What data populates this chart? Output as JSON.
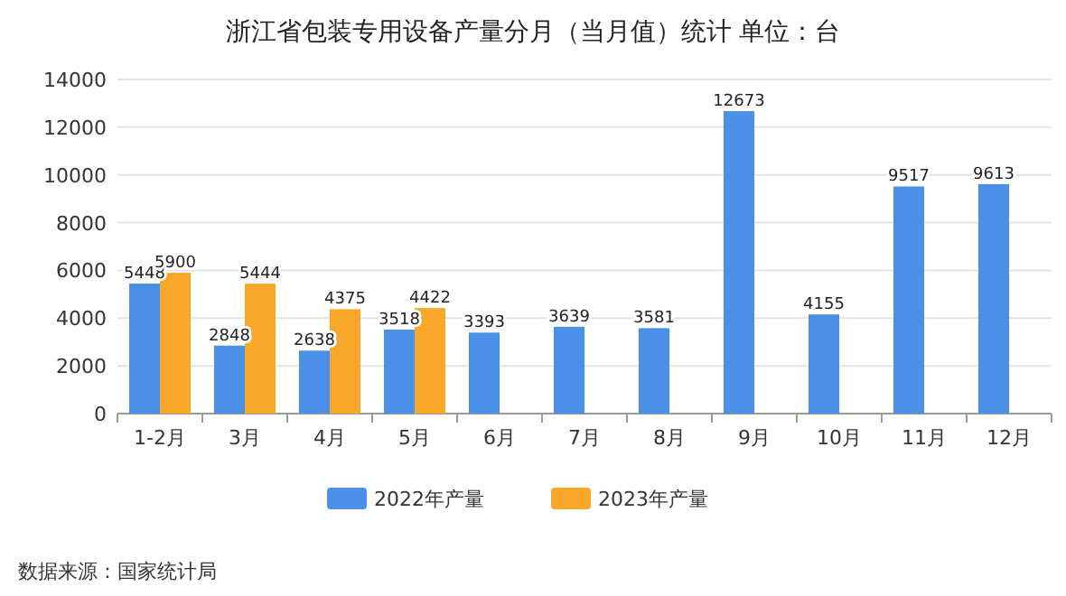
{
  "chart_data": {
    "type": "bar",
    "title": "浙江省包装专用设备产量分月（当月值）统计  单位：台",
    "categories": [
      "1-2月",
      "3月",
      "4月",
      "5月",
      "6月",
      "7月",
      "8月",
      "9月",
      "10月",
      "11月",
      "12月"
    ],
    "series": [
      {
        "name": "2022年产量",
        "color": "#4a8fe8",
        "values": [
          5448,
          2848,
          2638,
          3518,
          3393,
          3639,
          3581,
          12673,
          4155,
          9517,
          9613
        ]
      },
      {
        "name": "2023年产量",
        "color": "#f9a72b",
        "values": [
          5900,
          5444,
          4375,
          4422,
          null,
          null,
          null,
          null,
          null,
          null,
          null
        ]
      }
    ],
    "ylim": [
      0,
      14000
    ],
    "yticks": [
      0,
      2000,
      4000,
      6000,
      8000,
      10000,
      12000,
      14000
    ],
    "grid": "y",
    "legend": "bottom",
    "data_labels": true,
    "annotations": [
      "数据来源：国家统计局"
    ]
  }
}
